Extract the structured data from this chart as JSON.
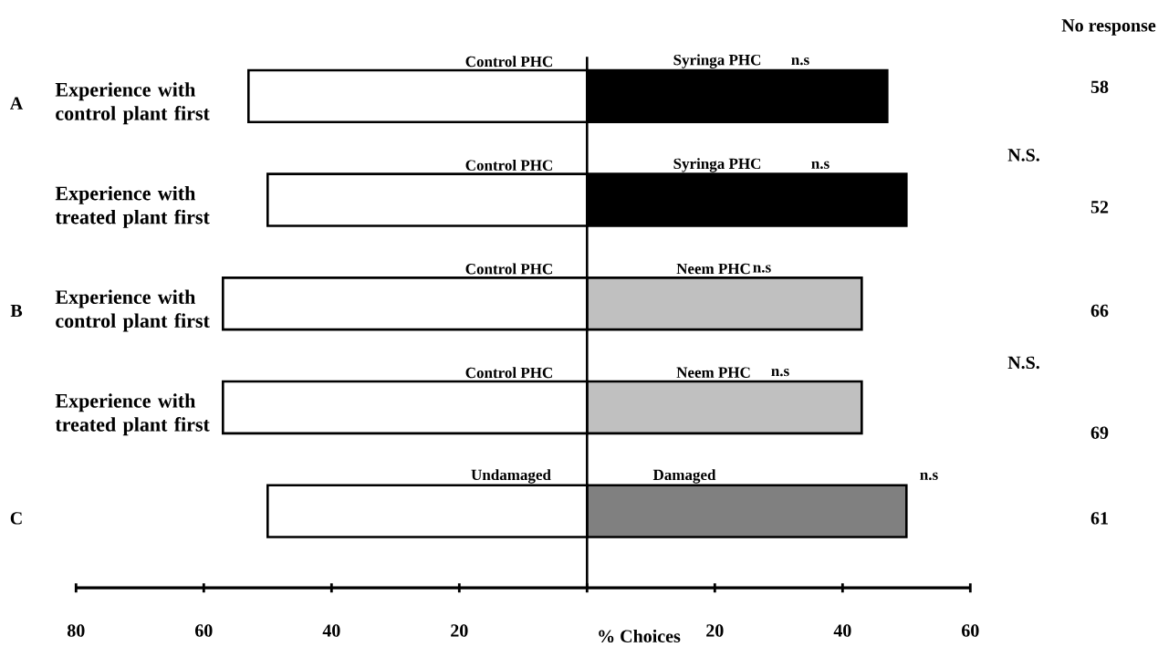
{
  "chart_data": {
    "type": "bar",
    "orientation": "horizontal",
    "stacked": true,
    "categories": [
      "Experience with control plant first",
      "Experience with treated plant first",
      "Experience with control plant first",
      "Experience with treated plant first",
      null
    ],
    "series": [
      {
        "colors": [
          "#ffffff",
          "#ffffff",
          "#ffffff",
          "#ffffff",
          "#ffffff"
        ],
        "values": [
          -53,
          -50,
          -57,
          -57,
          -50
        ]
      },
      {
        "colors": [
          "#000000",
          "#000000",
          "#c0c0c0",
          "#c0c0c0",
          "#808080"
        ],
        "values": [
          47,
          50,
          43,
          43,
          50
        ]
      }
    ],
    "xlabel": "% Choices",
    "xlim": [
      -80,
      60
    ],
    "xticks": [
      {
        "value": -80,
        "label": "80"
      },
      {
        "value": -60,
        "label": "60"
      },
      {
        "value": -40,
        "label": "40"
      },
      {
        "value": -20,
        "label": "20"
      },
      {
        "value": 0,
        "label": null
      },
      20,
      40,
      60
    ],
    "annotations": [
      "A",
      "B",
      "C",
      "No response",
      "58",
      "52",
      "66",
      "69",
      "61",
      "N.S.",
      "N.S.",
      "Control PHC",
      "Syringa PHC",
      "n.s",
      "Control PHC",
      "Syringa PHC",
      "n.s",
      "Control PHC",
      "Neem PHC",
      "n.s",
      "Control PHC",
      "Neem PHC",
      "n.s",
      "Undamaged",
      "Damaged",
      "n.s"
    ]
  }
}
